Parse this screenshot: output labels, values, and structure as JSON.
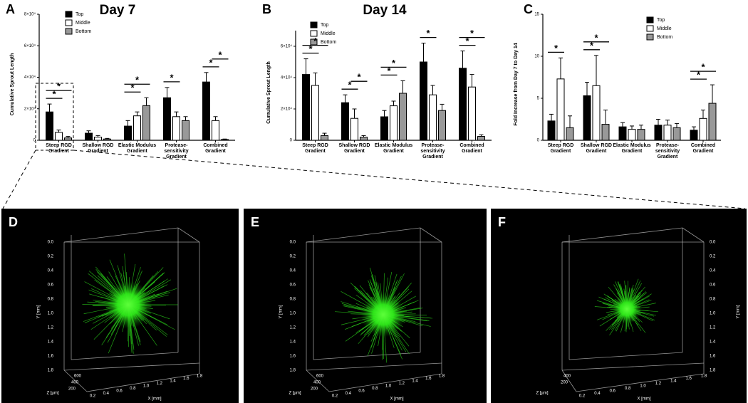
{
  "chart_data": [
    {
      "type": "bar",
      "panel": "A",
      "title": "Day 7",
      "y_label": "Cumulative Sprout Length",
      "categories": [
        "Steep RGD Gradient",
        "Shallow RGD Gradient",
        "Elastic Modulus Gradient",
        "Protease-sensitivity Gradient",
        "Combined Gradient"
      ],
      "series": [
        {
          "name": "Top",
          "color": "#000000",
          "values": [
            18000,
            4500,
            9000,
            27000,
            37000
          ],
          "errors": [
            5000,
            1500,
            3500,
            6500,
            6000
          ]
        },
        {
          "name": "Middle",
          "color": "#ffffff",
          "values": [
            5000,
            2000,
            15500,
            15000,
            12500
          ],
          "errors": [
            1500,
            1000,
            2500,
            3000,
            2500
          ]
        },
        {
          "name": "Bottom",
          "color": "#999999",
          "values": [
            1500,
            800,
            22000,
            12500,
            500
          ],
          "errors": [
            1000,
            400,
            5000,
            2500,
            300
          ]
        }
      ],
      "ylim": [
        0,
        80000
      ],
      "yticks": [
        0,
        {
          "value": 20000,
          "label": "2×10⁴"
        },
        {
          "value": 40000,
          "label": "4×10⁴"
        },
        {
          "value": 60000,
          "label": "6×10⁴"
        },
        {
          "value": 80000,
          "label": "8×10⁴"
        }
      ],
      "legend": "upper left",
      "annotations": [
        {
          "text": "*",
          "category": 0,
          "series": [
            0,
            1
          ]
        },
        {
          "text": "*",
          "category": 0,
          "series": [
            0,
            2
          ]
        },
        {
          "text": "*",
          "category": 2,
          "series": [
            0,
            1
          ]
        },
        {
          "text": "*",
          "category": 2,
          "series": [
            0,
            2
          ]
        },
        {
          "text": "*",
          "category": 3,
          "series": [
            0,
            1
          ]
        },
        {
          "text": "*",
          "category": 4,
          "series": [
            0,
            1
          ]
        },
        {
          "text": "*",
          "category": 4,
          "series": [
            1,
            2
          ]
        }
      ]
    },
    {
      "type": "bar",
      "panel": "B",
      "title": "Day 14",
      "y_label": "Cumulative Sprout Length",
      "categories": [
        "Steep RGD Gradient",
        "Shallow RGD Gradient",
        "Elastic Modulus Gradient",
        "Protease-sensitivity Gradient",
        "Combined Gradient"
      ],
      "series": [
        {
          "name": "Top",
          "color": "#000000",
          "values": [
            42000,
            24000,
            15000,
            50000,
            46000
          ],
          "errors": [
            10000,
            5000,
            4000,
            12000,
            11000
          ]
        },
        {
          "name": "Middle",
          "color": "#ffffff",
          "values": [
            35000,
            14000,
            22000,
            29000,
            34000
          ],
          "errors": [
            8000,
            6000,
            3000,
            6000,
            8000
          ]
        },
        {
          "name": "Bottom",
          "color": "#999999",
          "values": [
            3000,
            2000,
            30000,
            19000,
            2500
          ],
          "errors": [
            1500,
            1000,
            8000,
            4000,
            1000
          ]
        }
      ],
      "ylim": [
        0,
        70000
      ],
      "yticks": [
        0,
        {
          "value": 20000,
          "label": "2×10⁴"
        },
        {
          "value": 40000,
          "label": "4×10⁴"
        },
        {
          "value": 60000,
          "label": "6×10⁴"
        }
      ],
      "legend": "upper left",
      "annotations": [
        {
          "text": "*",
          "category": 0,
          "series": [
            0,
            1
          ]
        },
        {
          "text": "*",
          "category": 0,
          "series": [
            0,
            2
          ]
        },
        {
          "text": "*",
          "category": 1,
          "series": [
            0,
            1
          ]
        },
        {
          "text": "*",
          "category": 1,
          "series": [
            1,
            2
          ]
        },
        {
          "text": "*",
          "category": 2,
          "series": [
            0,
            1
          ]
        },
        {
          "text": "*",
          "category": 2,
          "series": [
            0,
            2
          ]
        },
        {
          "text": "*",
          "category": 3,
          "series": [
            0,
            1
          ]
        },
        {
          "text": "*",
          "category": 4,
          "series": [
            0,
            1
          ]
        },
        {
          "text": "*",
          "category": 4,
          "series": [
            0,
            2
          ]
        }
      ]
    },
    {
      "type": "bar",
      "panel": "C",
      "y_label": "Fold Increase from Day 7 to Day 14",
      "categories": [
        "Steep RGD Gradient",
        "Shallow RGD Gradient",
        "Elastic Modulus Gradient",
        "Protease-sensitivity Gradient",
        "Combined Gradient"
      ],
      "series": [
        {
          "name": "Top",
          "color": "#000000",
          "values": [
            2.3,
            5.3,
            1.6,
            1.8,
            1.2
          ],
          "errors": [
            0.8,
            1.6,
            0.5,
            0.7,
            0.4
          ]
        },
        {
          "name": "Middle",
          "color": "#ffffff",
          "values": [
            7.3,
            6.5,
            1.3,
            1.8,
            2.6
          ],
          "errors": [
            2.5,
            3.6,
            0.4,
            0.6,
            1.0
          ]
        },
        {
          "name": "Bottom",
          "color": "#999999",
          "values": [
            1.5,
            1.9,
            1.3,
            1.5,
            4.4
          ],
          "errors": [
            1.4,
            1.7,
            0.5,
            0.5,
            2.2
          ]
        }
      ],
      "ylim": [
        0,
        15
      ],
      "yticks": [
        0,
        5,
        10,
        15
      ],
      "legend": "upper right",
      "annotations": [
        {
          "text": "*",
          "category": 0,
          "series": [
            0,
            1
          ]
        },
        {
          "text": "*",
          "category": 1,
          "series": [
            0,
            1
          ]
        },
        {
          "text": "*",
          "category": 1,
          "series": [
            0,
            2
          ]
        },
        {
          "text": "*",
          "category": 4,
          "series": [
            0,
            1
          ]
        },
        {
          "text": "*",
          "category": 4,
          "series": [
            0,
            2
          ]
        }
      ]
    }
  ],
  "image_panels": [
    {
      "label": "D",
      "y_axis_label": "Y [mm]",
      "y_ticks": [
        "0.0",
        "0.2",
        "0.4",
        "0.6",
        "0.8",
        "1.0",
        "1.2",
        "1.4",
        "1.6",
        "1.8"
      ],
      "x_axis_label": "X [mm]",
      "x_ticks": [
        "0.2",
        "0.4",
        "0.6",
        "0.8",
        "1.0",
        "1.2",
        "1.4",
        "1.6",
        "1.8"
      ],
      "z_axis_label": "Z [µm]",
      "z_ticks": [
        "600",
        "400",
        "200"
      ]
    },
    {
      "label": "E",
      "y_axis_label": "Y [mm]",
      "y_ticks": [
        "0.0",
        "0.2",
        "0.4",
        "0.6",
        "0.8",
        "1.0",
        "1.2",
        "1.4",
        "1.6",
        "1.8"
      ],
      "x_axis_label": "X [mm]",
      "x_ticks": [
        "0.2",
        "0.4",
        "0.6",
        "0.8",
        "1.0",
        "1.2",
        "1.4",
        "1.6",
        "1.8"
      ],
      "z_axis_label": "Z [µm]",
      "z_ticks": [
        "600",
        "400",
        "200"
      ]
    },
    {
      "label": "F",
      "y_axis_label": "Y [mm]",
      "y_ticks": [
        "0.0",
        "0.2",
        "0.4",
        "0.6",
        "0.8",
        "1.0",
        "1.2",
        "1.4",
        "1.6",
        "1.8"
      ],
      "x_axis_label": "X [mm]",
      "x_ticks": [
        "0.2",
        "0.4",
        "0.6",
        "0.8",
        "1.0",
        "1.2",
        "1.4",
        "1.6",
        "1.8"
      ],
      "z_axis_label": "Z [µm]",
      "z_ticks": [
        "400",
        "200"
      ]
    }
  ]
}
